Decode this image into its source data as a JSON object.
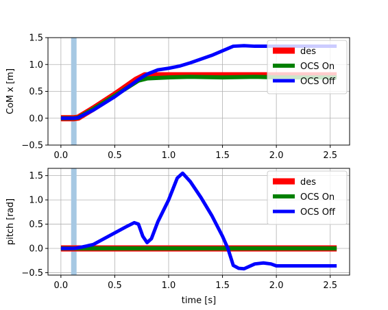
{
  "chart_data": [
    {
      "type": "line",
      "ylabel": "CoM x [m]",
      "xlabel": "",
      "xlim": [
        -0.12,
        2.68
      ],
      "ylim": [
        -0.5,
        1.5
      ],
      "xticks": [
        0.0,
        0.5,
        1.0,
        1.5,
        2.0,
        2.5
      ],
      "xtick_labels": [
        "0.0",
        "0.5",
        "1.0",
        "1.5",
        "2.0",
        "2.5"
      ],
      "yticks": [
        -0.5,
        0.0,
        0.5,
        1.0,
        1.5
      ],
      "ytick_labels": [
        "−0.5",
        "0.0",
        "0.5",
        "1.0",
        "1.5"
      ],
      "grid": true,
      "legend_position": "top-right",
      "vspan": {
        "x": 0.12,
        "color": "#a6c8e3"
      },
      "series": [
        {
          "name": "des",
          "color": "#ff0000",
          "x": [
            0.0,
            0.12,
            0.16,
            0.3,
            0.5,
            0.7,
            0.78,
            1.0,
            1.5,
            2.0,
            2.56
          ],
          "y": [
            0.0,
            0.0,
            0.01,
            0.18,
            0.44,
            0.72,
            0.8,
            0.8,
            0.8,
            0.8,
            0.8
          ]
        },
        {
          "name": "OCS On",
          "color": "#008000",
          "x": [
            0.0,
            0.12,
            0.16,
            0.3,
            0.5,
            0.72,
            0.8,
            1.0,
            1.2,
            1.5,
            1.8,
            2.0,
            2.56
          ],
          "y": [
            0.0,
            0.0,
            0.01,
            0.17,
            0.42,
            0.7,
            0.74,
            0.76,
            0.77,
            0.76,
            0.77,
            0.76,
            0.76
          ]
        },
        {
          "name": "OCS Off",
          "color": "#0000ff",
          "x": [
            0.0,
            0.12,
            0.16,
            0.3,
            0.5,
            0.72,
            0.8,
            0.9,
            1.0,
            1.1,
            1.2,
            1.4,
            1.6,
            1.7,
            1.8,
            2.0,
            2.56
          ],
          "y": [
            0.0,
            0.0,
            0.01,
            0.15,
            0.4,
            0.72,
            0.82,
            0.9,
            0.93,
            0.97,
            1.03,
            1.17,
            1.34,
            1.35,
            1.34,
            1.34,
            1.34
          ]
        }
      ]
    },
    {
      "type": "line",
      "ylabel": "pitch [rad]",
      "xlabel": "time [s]",
      "xlim": [
        -0.12,
        2.68
      ],
      "ylim": [
        -0.55,
        1.65
      ],
      "xticks": [
        0.0,
        0.5,
        1.0,
        1.5,
        2.0,
        2.5
      ],
      "xtick_labels": [
        "0.0",
        "0.5",
        "1.0",
        "1.5",
        "2.0",
        "2.5"
      ],
      "yticks": [
        -0.5,
        0.0,
        0.5,
        1.0,
        1.5
      ],
      "ytick_labels": [
        "−0.5",
        "0.0",
        "0.5",
        "1.0",
        "1.5"
      ],
      "grid": true,
      "legend_position": "top-right",
      "vspan": {
        "x": 0.12,
        "color": "#a6c8e3"
      },
      "series": [
        {
          "name": "des",
          "color": "#ff0000",
          "x": [
            0.0,
            2.56
          ],
          "y": [
            0.0,
            0.0
          ]
        },
        {
          "name": "OCS On",
          "color": "#008000",
          "x": [
            0.0,
            2.56
          ],
          "y": [
            0.0,
            0.0
          ]
        },
        {
          "name": "OCS Off",
          "color": "#0000ff",
          "x": [
            0.0,
            0.12,
            0.2,
            0.3,
            0.4,
            0.5,
            0.6,
            0.68,
            0.72,
            0.76,
            0.8,
            0.84,
            0.9,
            1.0,
            1.08,
            1.13,
            1.2,
            1.3,
            1.4,
            1.5,
            1.55,
            1.6,
            1.65,
            1.7,
            1.8,
            1.88,
            1.95,
            2.0,
            2.56
          ],
          "y": [
            0.0,
            0.0,
            0.03,
            0.08,
            0.2,
            0.32,
            0.44,
            0.53,
            0.5,
            0.25,
            0.12,
            0.2,
            0.55,
            1.0,
            1.45,
            1.55,
            1.38,
            1.05,
            0.68,
            0.25,
            0.0,
            -0.35,
            -0.41,
            -0.42,
            -0.32,
            -0.3,
            -0.32,
            -0.36,
            -0.36
          ]
        }
      ]
    }
  ]
}
